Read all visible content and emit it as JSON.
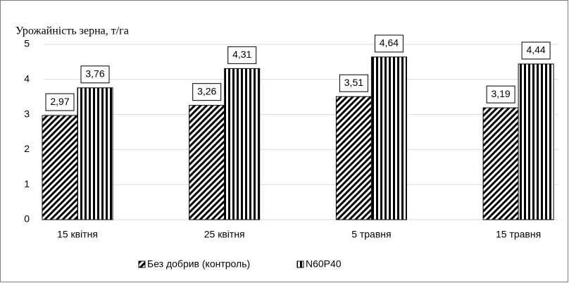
{
  "chart_data": {
    "type": "bar",
    "y_label": "Урожайність зерна, т/га",
    "categories": [
      "15 квітня",
      "25 квітня",
      "5 травня",
      "15 травня"
    ],
    "series": [
      {
        "name": "Без добрив (контроль)",
        "color": "#000000",
        "pattern": "diagonal",
        "values": [
          2.97,
          3.26,
          3.51,
          3.19
        ],
        "value_labels": [
          "2,97",
          "3,26",
          "3,51",
          "3,19"
        ]
      },
      {
        "name": "N60P40",
        "color": "#000000",
        "pattern": "vertical",
        "values": [
          3.76,
          4.31,
          4.64,
          4.44
        ],
        "value_labels": [
          "3,76",
          "4,31",
          "4,64",
          "4,44"
        ]
      }
    ],
    "ylim": [
      0,
      5
    ],
    "yticks": [
      0,
      1,
      2,
      3,
      4,
      5
    ],
    "grid": true,
    "legend": "bottom"
  }
}
